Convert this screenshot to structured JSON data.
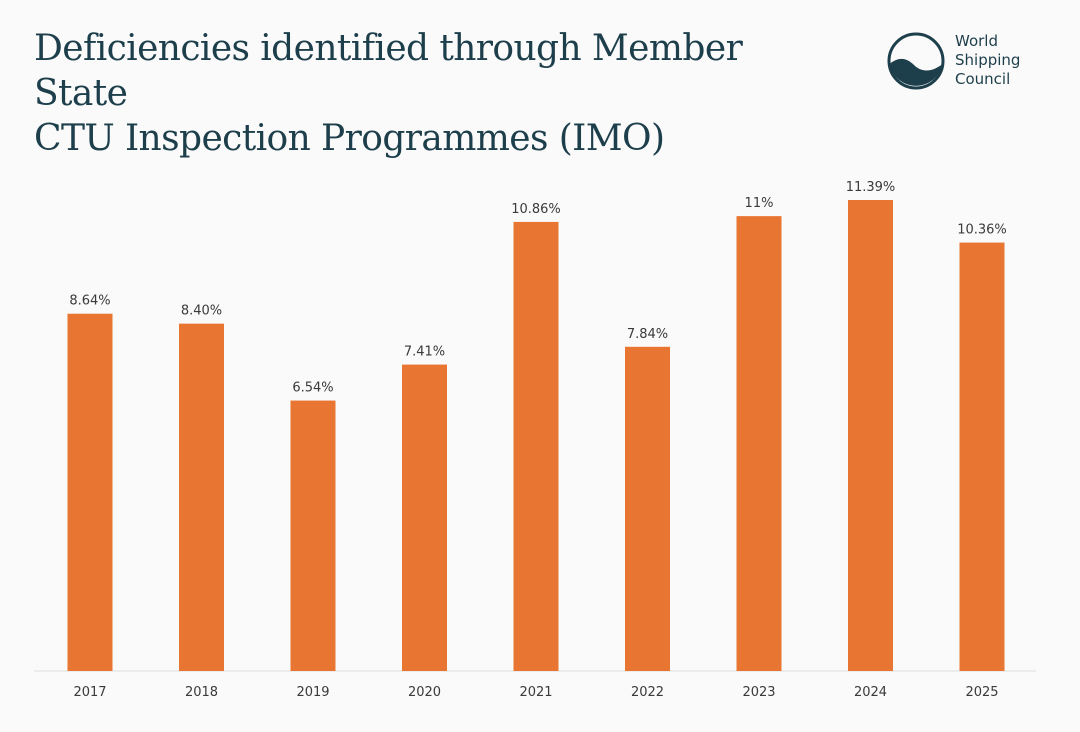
{
  "header": {
    "title_line1": "Deficiencies identified through Member State",
    "title_line2": "CTU Inspection Programmes (IMO)"
  },
  "logo": {
    "line1": "World",
    "line2": "Shipping",
    "line3": "Council",
    "icon": "wave-circle-icon"
  },
  "colors": {
    "bar": "#e87532",
    "title": "#1d3e4b",
    "axis": "#dddddd"
  },
  "chart_data": {
    "type": "bar",
    "title": "Deficiencies identified through Member State CTU Inspection Programmes (IMO)",
    "categories": [
      "2017",
      "2018",
      "2019",
      "2020",
      "2021",
      "2022",
      "2023",
      "2024",
      "2025"
    ],
    "values": [
      8.64,
      8.4,
      6.54,
      7.41,
      10.86,
      7.84,
      11,
      11.39,
      10.36
    ],
    "data_labels": [
      "8.64%",
      "8.40%",
      "6.54%",
      "7.41%",
      "10.86%",
      "7.84%",
      "11%",
      "11.39%",
      "10.36%"
    ],
    "xlabel": "",
    "ylabel": "",
    "ylim": [
      0,
      11.39
    ],
    "grid": false,
    "legend": "none"
  }
}
